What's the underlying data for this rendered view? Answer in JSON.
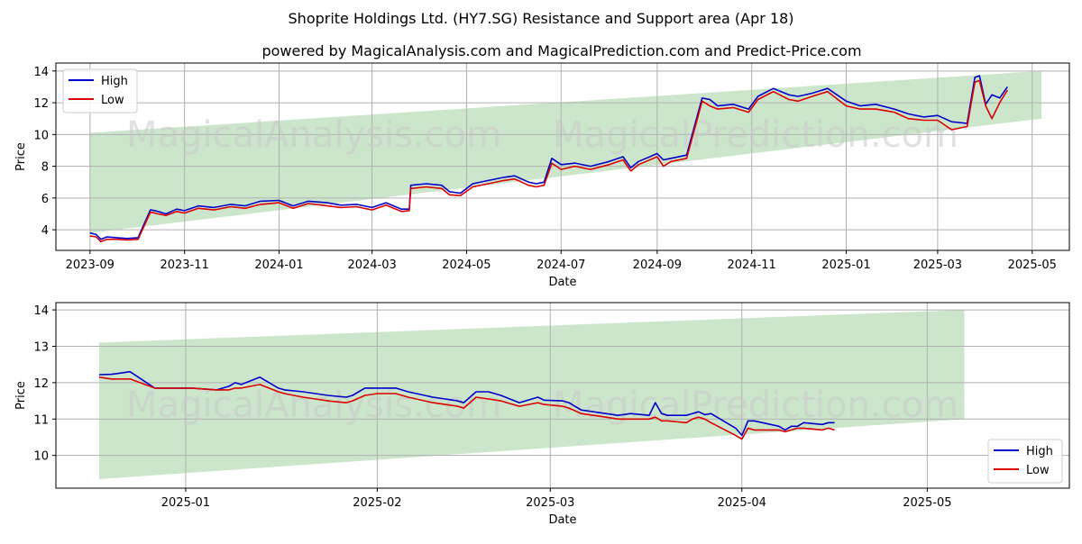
{
  "title": "Shoprite Holdings Ltd. (HY7.SG) Resistance and Support area (Apr 18)",
  "subtitle": "powered by MagicalAnalysis.com and MagicalPrediction.com and Predict-Price.com",
  "watermarks": [
    "MagicalAnalysis.com",
    "MagicalPrediction.com"
  ],
  "colors": {
    "high": "#0000cc",
    "low": "#dd0000",
    "band": "#a8d5a8",
    "grid": "#b0b0b0"
  },
  "chart_data": [
    {
      "type": "line",
      "xlabel": "Date",
      "ylabel": "Price",
      "xlim": [
        "2023-08-10",
        "2025-05-25"
      ],
      "ylim": [
        2.7,
        14.5
      ],
      "yticks": [
        4,
        6,
        8,
        10,
        12,
        14
      ],
      "xticks": [
        "2023-09-01",
        "2023-11-01",
        "2024-01-01",
        "2024-03-01",
        "2024-05-01",
        "2024-07-01",
        "2024-09-01",
        "2024-11-01",
        "2025-01-01",
        "2025-03-01",
        "2025-05-01"
      ],
      "xtick_labels": [
        "2023-09",
        "2023-11",
        "2024-01",
        "2024-03",
        "2024-05",
        "2024-07",
        "2024-09",
        "2024-11",
        "2025-01",
        "2025-03",
        "2025-05"
      ],
      "grid": true,
      "legend": "top-left",
      "band": {
        "x": [
          "2023-09-01",
          "2025-05-07"
        ],
        "upper": [
          10.1,
          14.0
        ],
        "lower": [
          3.8,
          11.0
        ]
      },
      "series": [
        {
          "name": "High",
          "x": [
            "2023-09-01",
            "2023-09-05",
            "2023-09-08",
            "2023-09-12",
            "2023-09-18",
            "2023-09-25",
            "2023-10-02",
            "2023-10-10",
            "2023-10-13",
            "2023-10-15",
            "2023-10-20",
            "2023-10-27",
            "2023-11-01",
            "2023-11-10",
            "2023-11-20",
            "2023-12-01",
            "2023-12-10",
            "2023-12-20",
            "2024-01-01",
            "2024-01-10",
            "2024-01-20",
            "2024-02-01",
            "2024-02-10",
            "2024-02-20",
            "2024-03-01",
            "2024-03-10",
            "2024-03-20",
            "2024-03-25",
            "2024-03-26",
            "2024-04-05",
            "2024-04-15",
            "2024-04-20",
            "2024-04-27",
            "2024-05-05",
            "2024-05-15",
            "2024-05-25",
            "2024-06-01",
            "2024-06-10",
            "2024-06-15",
            "2024-06-20",
            "2024-06-25",
            "2024-07-01",
            "2024-07-10",
            "2024-07-20",
            "2024-08-01",
            "2024-08-10",
            "2024-08-15",
            "2024-08-20",
            "2024-09-01",
            "2024-09-05",
            "2024-09-10",
            "2024-09-20",
            "2024-09-30",
            "2024-10-05",
            "2024-10-10",
            "2024-10-20",
            "2024-10-30",
            "2024-11-05",
            "2024-11-15",
            "2024-11-25",
            "2024-12-01",
            "2024-12-10",
            "2024-12-20",
            "2025-01-01",
            "2025-01-10",
            "2025-01-20",
            "2025-02-01",
            "2025-02-10",
            "2025-02-20",
            "2025-03-01",
            "2025-03-10",
            "2025-03-20",
            "2025-03-25",
            "2025-03-28",
            "2025-04-01",
            "2025-04-05",
            "2025-04-10",
            "2025-04-15"
          ],
          "values": [
            3.8,
            3.7,
            3.4,
            3.55,
            3.5,
            3.45,
            3.5,
            5.25,
            5.2,
            5.15,
            5.0,
            5.3,
            5.2,
            5.5,
            5.4,
            5.6,
            5.5,
            5.8,
            5.85,
            5.5,
            5.8,
            5.7,
            5.55,
            5.6,
            5.4,
            5.7,
            5.3,
            5.3,
            6.8,
            6.9,
            6.8,
            6.4,
            6.3,
            6.9,
            7.1,
            7.3,
            7.4,
            7.0,
            6.9,
            7.0,
            8.5,
            8.1,
            8.2,
            8.0,
            8.3,
            8.6,
            7.9,
            8.3,
            8.8,
            8.4,
            8.5,
            8.7,
            12.3,
            12.2,
            11.8,
            11.9,
            11.6,
            12.4,
            12.9,
            12.5,
            12.4,
            12.6,
            12.9,
            12.1,
            11.8,
            11.9,
            11.6,
            11.3,
            11.1,
            11.2,
            10.8,
            10.7,
            13.6,
            13.7,
            11.9,
            12.5,
            12.3,
            13.0
          ]
        },
        {
          "name": "Low",
          "x": [
            "2023-09-01",
            "2023-09-05",
            "2023-09-08",
            "2023-09-12",
            "2023-09-18",
            "2023-09-25",
            "2023-10-02",
            "2023-10-10",
            "2023-10-13",
            "2023-10-15",
            "2023-10-20",
            "2023-10-27",
            "2023-11-01",
            "2023-11-10",
            "2023-11-20",
            "2023-12-01",
            "2023-12-10",
            "2023-12-20",
            "2024-01-01",
            "2024-01-10",
            "2024-01-20",
            "2024-02-01",
            "2024-02-10",
            "2024-02-20",
            "2024-03-01",
            "2024-03-10",
            "2024-03-20",
            "2024-03-25",
            "2024-03-26",
            "2024-04-05",
            "2024-04-15",
            "2024-04-20",
            "2024-04-27",
            "2024-05-05",
            "2024-05-15",
            "2024-05-25",
            "2024-06-01",
            "2024-06-10",
            "2024-06-15",
            "2024-06-20",
            "2024-06-25",
            "2024-07-01",
            "2024-07-10",
            "2024-07-20",
            "2024-08-01",
            "2024-08-10",
            "2024-08-15",
            "2024-08-20",
            "2024-09-01",
            "2024-09-05",
            "2024-09-10",
            "2024-09-20",
            "2024-09-30",
            "2024-10-05",
            "2024-10-10",
            "2024-10-20",
            "2024-10-30",
            "2024-11-05",
            "2024-11-15",
            "2024-11-25",
            "2024-12-01",
            "2024-12-10",
            "2024-12-20",
            "2025-01-01",
            "2025-01-10",
            "2025-01-20",
            "2025-02-01",
            "2025-02-10",
            "2025-02-20",
            "2025-03-01",
            "2025-03-10",
            "2025-03-20",
            "2025-03-25",
            "2025-03-28",
            "2025-04-01",
            "2025-04-05",
            "2025-04-10",
            "2025-04-15"
          ],
          "values": [
            3.6,
            3.55,
            3.25,
            3.4,
            3.4,
            3.35,
            3.4,
            5.1,
            5.05,
            5.0,
            4.9,
            5.15,
            5.05,
            5.35,
            5.25,
            5.45,
            5.35,
            5.6,
            5.7,
            5.35,
            5.65,
            5.5,
            5.4,
            5.45,
            5.25,
            5.55,
            5.15,
            5.2,
            6.6,
            6.7,
            6.6,
            6.2,
            6.15,
            6.7,
            6.9,
            7.1,
            7.2,
            6.8,
            6.7,
            6.8,
            8.2,
            7.8,
            8.0,
            7.8,
            8.1,
            8.4,
            7.7,
            8.1,
            8.6,
            8.0,
            8.3,
            8.5,
            12.1,
            11.8,
            11.6,
            11.7,
            11.4,
            12.2,
            12.7,
            12.2,
            12.1,
            12.4,
            12.7,
            11.8,
            11.6,
            11.6,
            11.4,
            11.0,
            10.9,
            10.9,
            10.3,
            10.5,
            13.3,
            13.4,
            11.8,
            11.0,
            12.0,
            12.8
          ]
        }
      ]
    },
    {
      "type": "line",
      "xlabel": "Date",
      "ylabel": "Price",
      "xlim": [
        "2024-12-11",
        "2025-05-24"
      ],
      "ylim": [
        9.1,
        14.2
      ],
      "yticks": [
        10,
        11,
        12,
        13,
        14
      ],
      "xticks": [
        "2025-01-01",
        "2025-02-01",
        "2025-03-01",
        "2025-04-01",
        "2025-05-01"
      ],
      "xtick_labels": [
        "2025-01",
        "2025-02",
        "2025-03",
        "2025-04",
        "2025-05"
      ],
      "grid": true,
      "legend": "bottom-right",
      "band": {
        "x": [
          "2024-12-18",
          "2025-05-07"
        ],
        "upper": [
          13.1,
          14.0
        ],
        "lower": [
          9.35,
          11.0
        ]
      },
      "series": [
        {
          "name": "High",
          "x": [
            "2024-12-18",
            "2024-12-20",
            "2024-12-23",
            "2024-12-27",
            "2024-12-30",
            "2025-01-02",
            "2025-01-06",
            "2025-01-08",
            "2025-01-09",
            "2025-01-10",
            "2025-01-13",
            "2025-01-16",
            "2025-01-17",
            "2025-01-20",
            "2025-01-22",
            "2025-01-24",
            "2025-01-27",
            "2025-01-28",
            "2025-01-30",
            "2025-02-01",
            "2025-02-04",
            "2025-02-06",
            "2025-02-10",
            "2025-02-12",
            "2025-02-14",
            "2025-02-15",
            "2025-02-17",
            "2025-02-19",
            "2025-02-21",
            "2025-02-24",
            "2025-02-27",
            "2025-02-28",
            "2025-03-03",
            "2025-03-04",
            "2025-03-06",
            "2025-03-10",
            "2025-03-12",
            "2025-03-14",
            "2025-03-17",
            "2025-03-18",
            "2025-03-19",
            "2025-03-20",
            "2025-03-23",
            "2025-03-24",
            "2025-03-25",
            "2025-03-26",
            "2025-03-27",
            "2025-03-31",
            "2025-04-01",
            "2025-04-02",
            "2025-04-03",
            "2025-04-07",
            "2025-04-08",
            "2025-04-09",
            "2025-04-10",
            "2025-04-11",
            "2025-04-14",
            "2025-04-15",
            "2025-04-16"
          ],
          "values": [
            12.22,
            12.23,
            12.3,
            11.85,
            11.85,
            11.85,
            11.8,
            11.9,
            12.0,
            11.95,
            12.15,
            11.85,
            11.8,
            11.75,
            11.7,
            11.65,
            11.6,
            11.65,
            11.85,
            11.85,
            11.85,
            11.75,
            11.6,
            11.55,
            11.5,
            11.45,
            11.75,
            11.75,
            11.65,
            11.45,
            11.6,
            11.52,
            11.5,
            11.45,
            11.25,
            11.15,
            11.1,
            11.15,
            11.1,
            11.45,
            11.15,
            11.1,
            11.1,
            11.15,
            11.2,
            11.12,
            11.15,
            10.75,
            10.55,
            10.95,
            10.95,
            10.8,
            10.7,
            10.8,
            10.8,
            10.9,
            10.85,
            10.9,
            10.9
          ]
        },
        {
          "name": "Low",
          "x": [
            "2024-12-18",
            "2024-12-20",
            "2024-12-23",
            "2024-12-27",
            "2024-12-30",
            "2025-01-02",
            "2025-01-06",
            "2025-01-08",
            "2025-01-09",
            "2025-01-10",
            "2025-01-13",
            "2025-01-16",
            "2025-01-17",
            "2025-01-20",
            "2025-01-22",
            "2025-01-24",
            "2025-01-27",
            "2025-01-28",
            "2025-01-30",
            "2025-02-01",
            "2025-02-04",
            "2025-02-06",
            "2025-02-10",
            "2025-02-12",
            "2025-02-14",
            "2025-02-15",
            "2025-02-17",
            "2025-02-19",
            "2025-02-21",
            "2025-02-24",
            "2025-02-27",
            "2025-02-28",
            "2025-03-03",
            "2025-03-04",
            "2025-03-06",
            "2025-03-10",
            "2025-03-12",
            "2025-03-14",
            "2025-03-17",
            "2025-03-18",
            "2025-03-19",
            "2025-03-20",
            "2025-03-23",
            "2025-03-24",
            "2025-03-25",
            "2025-03-26",
            "2025-03-27",
            "2025-03-31",
            "2025-04-01",
            "2025-04-02",
            "2025-04-03",
            "2025-04-07",
            "2025-04-08",
            "2025-04-09",
            "2025-04-10",
            "2025-04-11",
            "2025-04-14",
            "2025-04-15",
            "2025-04-16"
          ],
          "values": [
            12.15,
            12.1,
            12.1,
            11.85,
            11.85,
            11.85,
            11.8,
            11.8,
            11.85,
            11.85,
            11.95,
            11.75,
            11.7,
            11.6,
            11.55,
            11.5,
            11.45,
            11.5,
            11.65,
            11.7,
            11.7,
            11.6,
            11.45,
            11.4,
            11.35,
            11.3,
            11.6,
            11.55,
            11.5,
            11.35,
            11.45,
            11.4,
            11.35,
            11.3,
            11.15,
            11.05,
            11.0,
            11.0,
            11.0,
            11.05,
            10.95,
            10.95,
            10.9,
            11.0,
            11.05,
            11.0,
            10.9,
            10.55,
            10.45,
            10.75,
            10.7,
            10.7,
            10.65,
            10.7,
            10.75,
            10.75,
            10.7,
            10.75,
            10.7
          ]
        }
      ]
    }
  ]
}
